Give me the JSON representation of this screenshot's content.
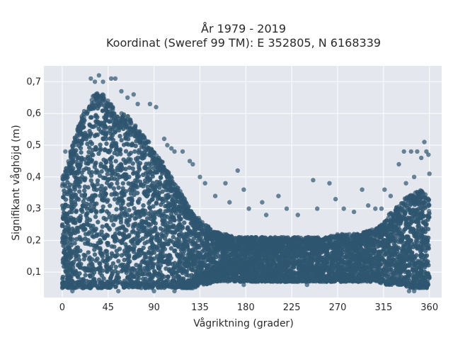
{
  "chart_data": {
    "type": "scatter",
    "title_line1": "År 1979 - 2019",
    "title_line2": "Koordinat (Sweref 99 TM): E 352805, N 6168339",
    "xlabel": "Vågriktning (grader)",
    "ylabel": "Signifikant våghöjd (m)",
    "xlim": [
      -18,
      372
    ],
    "ylim": [
      0.02,
      0.75
    ],
    "xticks": [
      0,
      45,
      90,
      135,
      180,
      225,
      270,
      315,
      360
    ],
    "yticks": [
      0.1,
      0.2,
      0.3,
      0.4,
      0.5,
      0.6,
      0.7
    ],
    "ytick_labels": [
      "0,1",
      "0,2",
      "0,3",
      "0,4",
      "0,5",
      "0,6",
      "0,7"
    ],
    "grid": true,
    "marker_color": "#2f5670",
    "background_color": "#e5e7ef",
    "density_envelope": {
      "x": [
        0,
        5,
        10,
        15,
        20,
        25,
        30,
        35,
        40,
        45,
        50,
        55,
        60,
        65,
        70,
        75,
        80,
        85,
        90,
        95,
        100,
        105,
        110,
        115,
        120,
        125,
        130,
        135,
        140,
        150,
        160,
        170,
        180,
        190,
        200,
        210,
        220,
        230,
        240,
        250,
        260,
        270,
        280,
        290,
        300,
        310,
        315,
        320,
        325,
        330,
        335,
        340,
        345,
        350,
        355,
        360
      ],
      "y_min": [
        0.05,
        0.05,
        0.05,
        0.05,
        0.05,
        0.05,
        0.05,
        0.05,
        0.05,
        0.05,
        0.05,
        0.05,
        0.05,
        0.05,
        0.05,
        0.05,
        0.05,
        0.05,
        0.05,
        0.05,
        0.05,
        0.05,
        0.05,
        0.05,
        0.05,
        0.05,
        0.05,
        0.06,
        0.06,
        0.07,
        0.07,
        0.07,
        0.07,
        0.07,
        0.07,
        0.07,
        0.07,
        0.07,
        0.07,
        0.07,
        0.07,
        0.07,
        0.07,
        0.07,
        0.07,
        0.07,
        0.06,
        0.06,
        0.06,
        0.06,
        0.06,
        0.05,
        0.05,
        0.05,
        0.05,
        0.05
      ],
      "y_max": [
        0.4,
        0.44,
        0.5,
        0.55,
        0.6,
        0.63,
        0.66,
        0.67,
        0.66,
        0.64,
        0.62,
        0.6,
        0.6,
        0.59,
        0.57,
        0.55,
        0.53,
        0.51,
        0.48,
        0.46,
        0.44,
        0.41,
        0.38,
        0.36,
        0.33,
        0.3,
        0.28,
        0.27,
        0.25,
        0.23,
        0.22,
        0.21,
        0.21,
        0.21,
        0.21,
        0.21,
        0.21,
        0.21,
        0.21,
        0.21,
        0.21,
        0.22,
        0.22,
        0.22,
        0.23,
        0.24,
        0.26,
        0.28,
        0.3,
        0.31,
        0.33,
        0.34,
        0.35,
        0.36,
        0.35,
        0.33
      ]
    },
    "outliers": [
      {
        "x": 28,
        "y": 0.71
      },
      {
        "x": 32,
        "y": 0.7
      },
      {
        "x": 36,
        "y": 0.72
      },
      {
        "x": 40,
        "y": 0.7
      },
      {
        "x": 48,
        "y": 0.71
      },
      {
        "x": 52,
        "y": 0.71
      },
      {
        "x": 58,
        "y": 0.67
      },
      {
        "x": 64,
        "y": 0.65
      },
      {
        "x": 70,
        "y": 0.66
      },
      {
        "x": 74,
        "y": 0.63
      },
      {
        "x": 86,
        "y": 0.63
      },
      {
        "x": 92,
        "y": 0.62
      },
      {
        "x": 15,
        "y": 0.55
      },
      {
        "x": 8,
        "y": 0.48
      },
      {
        "x": 3,
        "y": 0.48
      },
      {
        "x": 100,
        "y": 0.52
      },
      {
        "x": 103,
        "y": 0.5
      },
      {
        "x": 107,
        "y": 0.49
      },
      {
        "x": 110,
        "y": 0.48
      },
      {
        "x": 118,
        "y": 0.48
      },
      {
        "x": 125,
        "y": 0.45
      },
      {
        "x": 128,
        "y": 0.44
      },
      {
        "x": 135,
        "y": 0.4
      },
      {
        "x": 140,
        "y": 0.38
      },
      {
        "x": 150,
        "y": 0.34
      },
      {
        "x": 160,
        "y": 0.38
      },
      {
        "x": 164,
        "y": 0.32
      },
      {
        "x": 172,
        "y": 0.42
      },
      {
        "x": 178,
        "y": 0.36
      },
      {
        "x": 183,
        "y": 0.3
      },
      {
        "x": 196,
        "y": 0.32
      },
      {
        "x": 200,
        "y": 0.28
      },
      {
        "x": 212,
        "y": 0.34
      },
      {
        "x": 220,
        "y": 0.3
      },
      {
        "x": 231,
        "y": 0.28
      },
      {
        "x": 246,
        "y": 0.39
      },
      {
        "x": 250,
        "y": 0.3
      },
      {
        "x": 262,
        "y": 0.38
      },
      {
        "x": 268,
        "y": 0.33
      },
      {
        "x": 276,
        "y": 0.3
      },
      {
        "x": 286,
        "y": 0.29
      },
      {
        "x": 294,
        "y": 0.36
      },
      {
        "x": 300,
        "y": 0.31
      },
      {
        "x": 307,
        "y": 0.3
      },
      {
        "x": 313,
        "y": 0.3
      },
      {
        "x": 316,
        "y": 0.36
      },
      {
        "x": 322,
        "y": 0.34
      },
      {
        "x": 330,
        "y": 0.44
      },
      {
        "x": 335,
        "y": 0.48
      },
      {
        "x": 337,
        "y": 0.38
      },
      {
        "x": 342,
        "y": 0.48
      },
      {
        "x": 345,
        "y": 0.4
      },
      {
        "x": 348,
        "y": 0.48
      },
      {
        "x": 352,
        "y": 0.46
      },
      {
        "x": 355,
        "y": 0.51
      },
      {
        "x": 357,
        "y": 0.48
      },
      {
        "x": 359,
        "y": 0.47
      },
      {
        "x": 360,
        "y": 0.41
      },
      {
        "x": 178,
        "y": 0.06
      },
      {
        "x": 240,
        "y": 0.06
      },
      {
        "x": 290,
        "y": 0.07
      },
      {
        "x": 55,
        "y": 0.04
      },
      {
        "x": 90,
        "y": 0.04
      },
      {
        "x": 110,
        "y": 0.04
      },
      {
        "x": 10,
        "y": 0.04
      },
      {
        "x": 20,
        "y": 0.05
      },
      {
        "x": 340,
        "y": 0.04
      },
      {
        "x": 345,
        "y": 0.04
      }
    ]
  }
}
